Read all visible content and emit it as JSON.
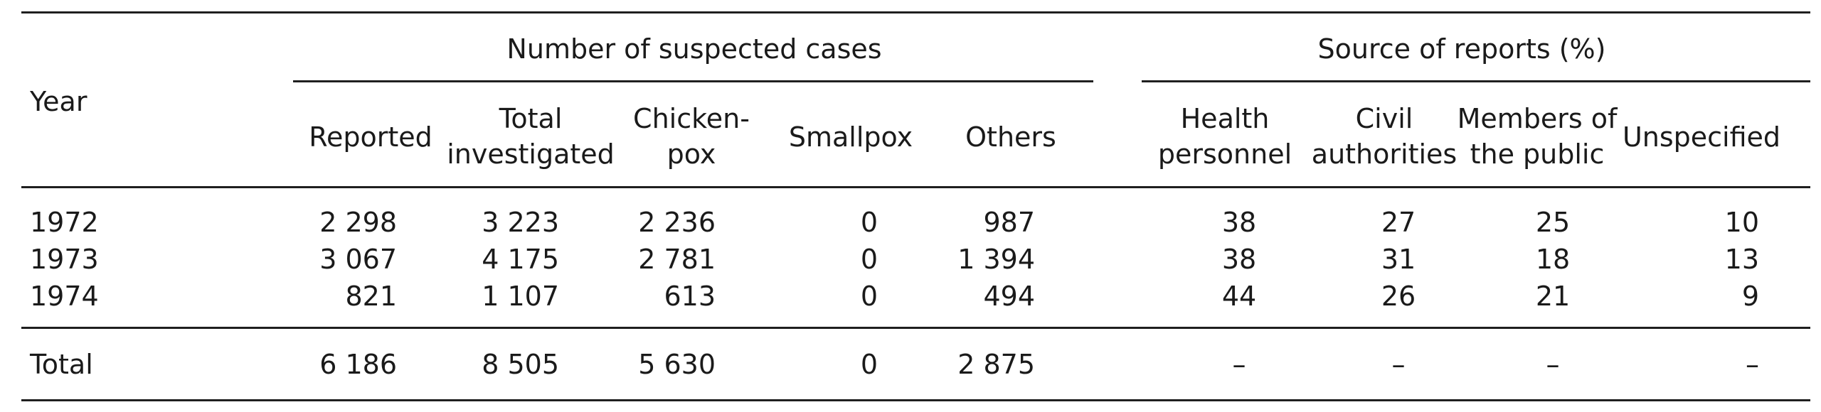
{
  "table": {
    "year_header": "Year",
    "group_headers": {
      "cases": "Number of suspected cases",
      "sources": "Source of reports (%)"
    },
    "columns": {
      "reported": "Reported",
      "total_investigated": [
        "Total",
        "investigated"
      ],
      "chickenpox": [
        "Chicken-",
        "pox"
      ],
      "smallpox": "Smallpox",
      "others": "Others",
      "health_personnel": [
        "Health",
        "personnel"
      ],
      "civil_authorities": [
        "Civil",
        "authorities"
      ],
      "members_public": [
        "Members of",
        "the public"
      ],
      "unspecified": "Unspecified"
    },
    "rows": [
      {
        "year": "1972",
        "reported": "2 298",
        "total_investigated": "3 223",
        "chickenpox": "2 236",
        "smallpox": "0",
        "others": "987",
        "health_personnel": "38",
        "civil_authorities": "27",
        "members_public": "25",
        "unspecified": "10"
      },
      {
        "year": "1973",
        "reported": "3 067",
        "total_investigated": "4 175",
        "chickenpox": "2 781",
        "smallpox": "0",
        "others": "1 394",
        "health_personnel": "38",
        "civil_authorities": "31",
        "members_public": "18",
        "unspecified": "13"
      },
      {
        "year": "1974",
        "reported": "821",
        "total_investigated": "1 107",
        "chickenpox": "613",
        "smallpox": "0",
        "others": "494",
        "health_personnel": "44",
        "civil_authorities": "26",
        "members_public": "21",
        "unspecified": "9"
      }
    ],
    "total_row": {
      "label": "Total",
      "reported": "6 186",
      "total_investigated": "8 505",
      "chickenpox": "5 630",
      "smallpox": "0",
      "others": "2 875",
      "health_personnel": "–",
      "civil_authorities": "–",
      "members_public": "–",
      "unspecified": "–"
    }
  }
}
